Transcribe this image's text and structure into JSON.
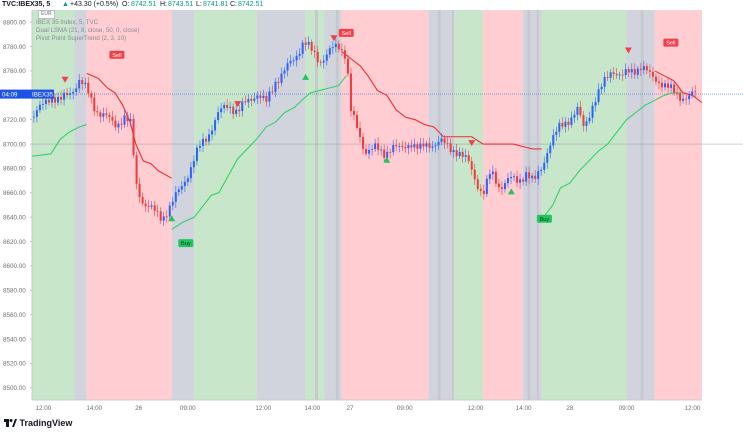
{
  "header": {
    "symbol": "TVC:IBEX35, 5",
    "change_arrow": "▲",
    "change": "+43.30 (+0.5%)",
    "open_label": "O:",
    "open": "8742.51",
    "high_label": "H:",
    "high": "8743.51",
    "low_label": "L:",
    "low": "8741.81",
    "close_label": "C:",
    "close": "8742.51",
    "up_color": "#089981"
  },
  "legend": {
    "currency": "EUR",
    "line1": "IBEX 35 Index, 5, TVC",
    "line2": "Dual LSMA (21, 8, close, 50, 0, close)",
    "line3": "Pivot Point SuperTrend (2, 3, 10)"
  },
  "price_axis": {
    "ticks": [
      "8800.00",
      "8780.00",
      "8760.00",
      "8740.00",
      "8720.00",
      "8700.00",
      "8680.00",
      "8660.00",
      "8640.00",
      "8620.00",
      "8600.00",
      "8580.00",
      "8560.00",
      "8540.00",
      "8520.00",
      "8500.00"
    ],
    "current_time": "04:09",
    "current_symbol": "IBEX35"
  },
  "time_axis": {
    "labels": [
      "12:00",
      "14:00",
      "26",
      "09:00",
      "12:00",
      "14:00",
      "27",
      "09:00",
      "12:00",
      "14:00",
      "28",
      "09:00",
      "12:00"
    ]
  },
  "footer": {
    "brand": "TradingView",
    "logo_icon": "tradingview-logo-icon"
  },
  "colors": {
    "buy": "#21c45f",
    "sell": "#f0414b",
    "green_zone": "#c8e6c9",
    "red_zone": "#ffcdd2",
    "gray_zone": "#d1d4dc",
    "supertrend_up": "#35d06a",
    "supertrend_down": "#ef2f2f",
    "bull_candle": "#2962ff",
    "bear_candle": "#ef3b3b"
  },
  "chart_data": {
    "type": "candlestick",
    "symbol": "IBEX 35 Index",
    "interval": "5",
    "ylim": [
      8490,
      8810
    ],
    "time_labels": [
      "12:00",
      "14:00",
      "26",
      "09:00",
      "12:00",
      "14:00",
      "27",
      "09:00",
      "12:00",
      "14:00",
      "28",
      "09:00",
      "12:00"
    ],
    "zones": [
      {
        "color": "green",
        "from": 0,
        "to": 45
      },
      {
        "color": "gray",
        "from": 45,
        "to": 58
      },
      {
        "color": "red",
        "from": 58,
        "to": 148
      },
      {
        "color": "gray",
        "from": 148,
        "to": 172
      },
      {
        "color": "green",
        "from": 172,
        "to": 238
      },
      {
        "color": "gray",
        "from": 238,
        "to": 290
      },
      {
        "color": "green",
        "from": 290,
        "to": 310
      },
      {
        "color": "gray",
        "from": 310,
        "to": 328
      },
      {
        "color": "red",
        "from": 328,
        "to": 420
      },
      {
        "color": "gray",
        "from": 420,
        "to": 448
      },
      {
        "color": "green",
        "from": 448,
        "to": 478
      },
      {
        "color": "red",
        "from": 478,
        "to": 520
      },
      {
        "color": "gray",
        "from": 520,
        "to": 540
      },
      {
        "color": "green",
        "from": 540,
        "to": 630
      },
      {
        "color": "gray",
        "from": 630,
        "to": 660
      },
      {
        "color": "red",
        "from": 660,
        "to": 710
      }
    ],
    "close_path": [
      [
        0,
        8722
      ],
      [
        10,
        8730
      ],
      [
        20,
        8740
      ],
      [
        30,
        8735
      ],
      [
        40,
        8742
      ],
      [
        50,
        8752
      ],
      [
        58,
        8744
      ],
      [
        68,
        8728
      ],
      [
        78,
        8722
      ],
      [
        88,
        8716
      ],
      [
        98,
        8722
      ],
      [
        105,
        8715
      ],
      [
        110,
        8668
      ],
      [
        118,
        8652
      ],
      [
        128,
        8645
      ],
      [
        138,
        8640
      ],
      [
        148,
        8650
      ],
      [
        158,
        8665
      ],
      [
        168,
        8680
      ],
      [
        178,
        8698
      ],
      [
        188,
        8710
      ],
      [
        198,
        8725
      ],
      [
        208,
        8733
      ],
      [
        218,
        8726
      ],
      [
        228,
        8735
      ],
      [
        238,
        8742
      ],
      [
        248,
        8733
      ],
      [
        258,
        8752
      ],
      [
        268,
        8760
      ],
      [
        278,
        8770
      ],
      [
        288,
        8785
      ],
      [
        296,
        8776
      ],
      [
        305,
        8768
      ],
      [
        315,
        8776
      ],
      [
        325,
        8780
      ],
      [
        333,
        8774
      ],
      [
        338,
        8728
      ],
      [
        345,
        8710
      ],
      [
        352,
        8695
      ],
      [
        362,
        8698
      ],
      [
        372,
        8690
      ],
      [
        382,
        8700
      ],
      [
        392,
        8694
      ],
      [
        402,
        8702
      ],
      [
        412,
        8696
      ],
      [
        420,
        8698
      ],
      [
        432,
        8704
      ],
      [
        442,
        8695
      ],
      [
        452,
        8695
      ],
      [
        462,
        8685
      ],
      [
        470,
        8670
      ],
      [
        478,
        8660
      ],
      [
        486,
        8676
      ],
      [
        495,
        8665
      ],
      [
        505,
        8672
      ],
      [
        515,
        8668
      ],
      [
        524,
        8678
      ],
      [
        532,
        8668
      ],
      [
        540,
        8680
      ],
      [
        548,
        8700
      ],
      [
        558,
        8712
      ],
      [
        568,
        8720
      ],
      [
        578,
        8728
      ],
      [
        585,
        8712
      ],
      [
        595,
        8735
      ],
      [
        605,
        8748
      ],
      [
        615,
        8762
      ],
      [
        625,
        8755
      ],
      [
        635,
        8760
      ],
      [
        645,
        8764
      ],
      [
        655,
        8756
      ],
      [
        665,
        8752
      ],
      [
        675,
        8745
      ],
      [
        685,
        8740
      ],
      [
        695,
        8738
      ],
      [
        705,
        8742
      ]
    ],
    "supertrend_up_segments": [
      [
        [
          0,
          8690
        ],
        [
          20,
          8692
        ],
        [
          30,
          8704
        ],
        [
          40,
          8710
        ],
        [
          50,
          8714
        ],
        [
          58,
          8716
        ]
      ],
      [
        [
          148,
          8630
        ],
        [
          160,
          8636
        ],
        [
          172,
          8640
        ],
        [
          180,
          8648
        ],
        [
          190,
          8658
        ],
        [
          198,
          8660
        ],
        [
          208,
          8674
        ],
        [
          218,
          8688
        ],
        [
          228,
          8696
        ],
        [
          238,
          8704
        ],
        [
          248,
          8714
        ],
        [
          258,
          8718
        ],
        [
          268,
          8726
        ],
        [
          278,
          8730
        ],
        [
          286,
          8736
        ],
        [
          295,
          8742
        ],
        [
          305,
          8744
        ],
        [
          315,
          8746
        ],
        [
          325,
          8748
        ],
        [
          333,
          8756
        ]
      ],
      [
        [
          540,
          8638
        ],
        [
          552,
          8650
        ],
        [
          560,
          8664
        ],
        [
          570,
          8668
        ],
        [
          580,
          8678
        ],
        [
          590,
          8686
        ],
        [
          600,
          8694
        ],
        [
          610,
          8700
        ],
        [
          620,
          8710
        ],
        [
          630,
          8720
        ],
        [
          640,
          8726
        ],
        [
          650,
          8732
        ],
        [
          660,
          8736
        ],
        [
          670,
          8740
        ],
        [
          680,
          8742
        ],
        [
          690,
          8742
        ]
      ]
    ],
    "supertrend_down_segments": [
      [
        [
          58,
          8758
        ],
        [
          70,
          8754
        ],
        [
          80,
          8746
        ],
        [
          88,
          8742
        ],
        [
          96,
          8732
        ],
        [
          104,
          8718
        ],
        [
          110,
          8700
        ],
        [
          118,
          8686
        ],
        [
          126,
          8684
        ],
        [
          134,
          8678
        ],
        [
          148,
          8672
        ]
      ],
      [
        [
          328,
          8776
        ],
        [
          338,
          8770
        ],
        [
          348,
          8764
        ],
        [
          356,
          8756
        ],
        [
          366,
          8744
        ],
        [
          376,
          8740
        ],
        [
          386,
          8728
        ],
        [
          396,
          8722
        ],
        [
          406,
          8720
        ],
        [
          416,
          8716
        ],
        [
          426,
          8714
        ],
        [
          436,
          8706
        ],
        [
          446,
          8706
        ],
        [
          456,
          8706
        ],
        [
          466,
          8706
        ],
        [
          478,
          8700
        ],
        [
          490,
          8700
        ],
        [
          500,
          8700
        ],
        [
          510,
          8700
        ],
        [
          520,
          8698
        ],
        [
          530,
          8696
        ],
        [
          540,
          8696
        ]
      ],
      [
        [
          660,
          8760
        ],
        [
          670,
          8756
        ],
        [
          680,
          8752
        ],
        [
          690,
          8742
        ],
        [
          700,
          8740
        ],
        [
          710,
          8734
        ]
      ]
    ],
    "signals": [
      {
        "type": "sell",
        "x": 35,
        "y": 8752,
        "label": ""
      },
      {
        "type": "sell",
        "x": 90,
        "y": 8770,
        "label": "Sell"
      },
      {
        "type": "buy",
        "x": 148,
        "y": 8640,
        "label": ""
      },
      {
        "type": "buy",
        "x": 163,
        "y": 8622,
        "label": "Buy"
      },
      {
        "type": "sell",
        "x": 218,
        "y": 8732,
        "label": ""
      },
      {
        "type": "buy",
        "x": 290,
        "y": 8756,
        "label": ""
      },
      {
        "type": "sell",
        "x": 320,
        "y": 8786,
        "label": ""
      },
      {
        "type": "sell",
        "x": 333,
        "y": 8788,
        "label": "Sell"
      },
      {
        "type": "buy",
        "x": 376,
        "y": 8688,
        "label": ""
      },
      {
        "type": "sell",
        "x": 466,
        "y": 8700,
        "label": ""
      },
      {
        "type": "buy",
        "x": 508,
        "y": 8662,
        "label": ""
      },
      {
        "type": "buy",
        "x": 543,
        "y": 8642,
        "label": "Buy"
      },
      {
        "type": "sell",
        "x": 632,
        "y": 8776,
        "label": ""
      },
      {
        "type": "sell",
        "x": 677,
        "y": 8780,
        "label": "Sell"
      }
    ],
    "price_lines": [
      8741,
      8700
    ]
  }
}
